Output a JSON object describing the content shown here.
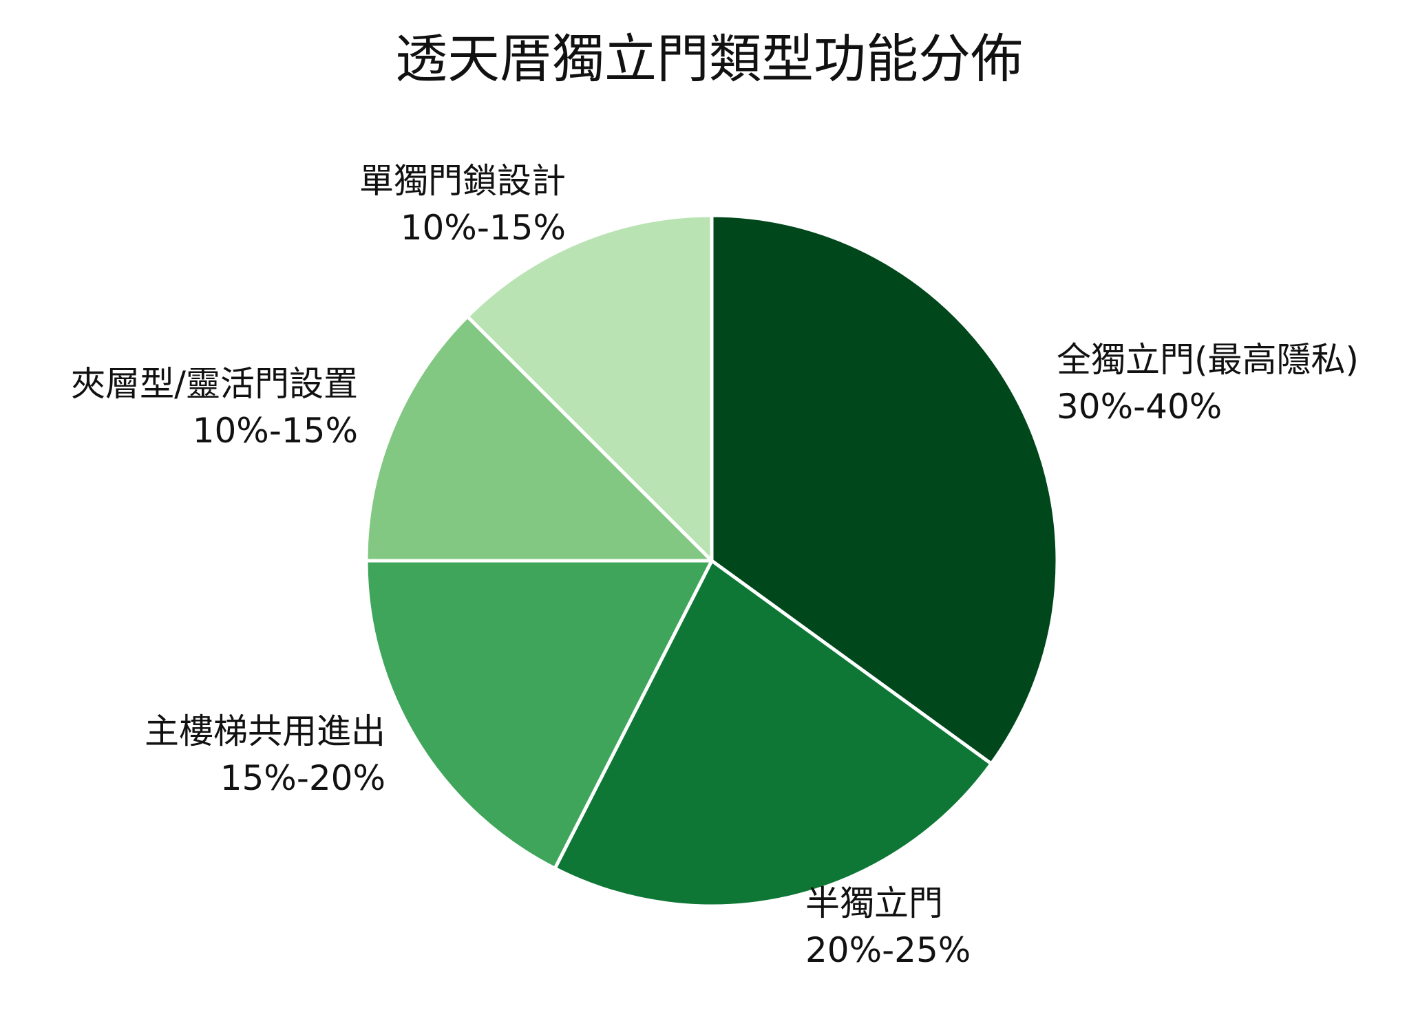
{
  "chart_data": {
    "type": "pie",
    "title": "透天厝獨立門類型功能分佈",
    "start": "12 o'clock",
    "direction": "clockwise",
    "slices": [
      {
        "name": "全獨立門(最高隱私)",
        "range_label": "30%-40%",
        "value": 35,
        "color": "#00471b"
      },
      {
        "name": "半獨立門",
        "range_label": "20%-25%",
        "value": 22.5,
        "color": "#0e7735"
      },
      {
        "name": "主樓梯共用進出",
        "range_label": "15%-20%",
        "value": 17.5,
        "color": "#3ea55a"
      },
      {
        "name": "夾層型/靈活門設置",
        "range_label": "10%-15%",
        "value": 12.5,
        "color": "#82c882"
      },
      {
        "name": "單獨門鎖設計",
        "range_label": "10%-15%",
        "value": 12.5,
        "color": "#b9e3b3"
      }
    ]
  }
}
